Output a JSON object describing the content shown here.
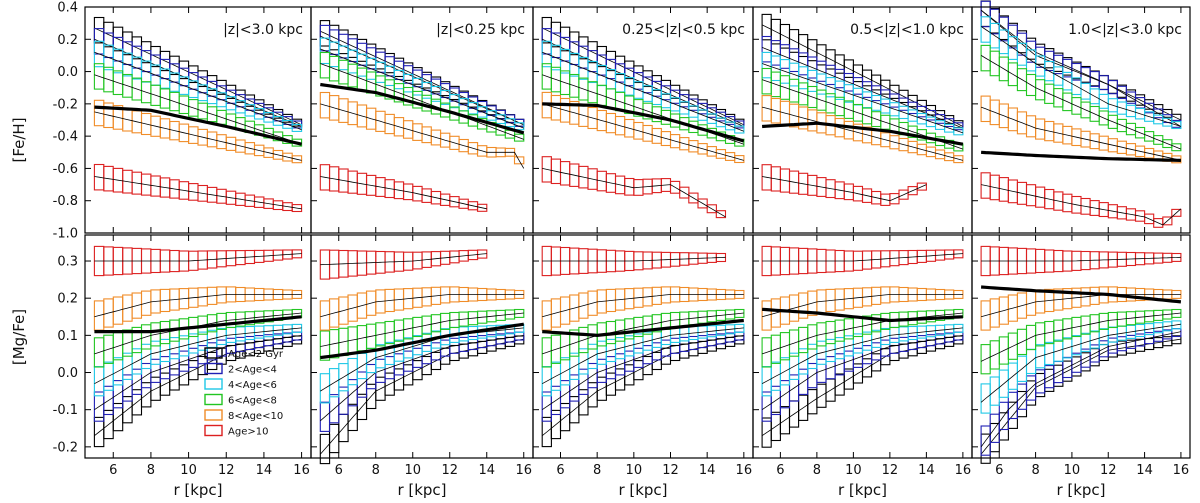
{
  "figure": {
    "ylabel_top": "[Fe/H]",
    "ylabel_bottom": "[Mg/Fe]",
    "xlabel": "r  [kpc]",
    "xticks": [
      "6",
      "8",
      "10",
      "12",
      "14",
      "16"
    ],
    "yticks_top": [
      "0.4",
      "0.2",
      "0.0",
      "-0.2",
      "-0.4",
      "-0.6",
      "-0.8",
      "-1.0"
    ],
    "yticks_bottom": [
      "0.3",
      "0.2",
      "0.1",
      "0.0",
      "-0.1",
      "-0.2"
    ],
    "panel_titles": [
      "|z|<3.0 kpc",
      "|z|<0.25 kpc",
      "0.25<|z|<0.5 kpc",
      "0.5<|z|<1.0 kpc",
      "1.0<|z|<3.0 kpc"
    ]
  },
  "legend": [
    {
      "label": "Age<2 Gyr",
      "color": "#000000"
    },
    {
      "label": "2<Age<4",
      "color": "#1f1fb4"
    },
    {
      "label": "4<Age<6",
      "color": "#1ec8e6"
    },
    {
      "label": "6<Age<8",
      "color": "#22c522"
    },
    {
      "label": "8<Age<10",
      "color": "#f08c28"
    },
    {
      "label": "Age>10",
      "color": "#dc2020"
    }
  ],
  "chart_data": [
    {
      "type": "line",
      "panel": "|z|<3.0 kpc",
      "xlim": [
        4.5,
        16.5
      ],
      "ylim_top": [
        -1.0,
        0.4
      ],
      "ylim_bottom": [
        -0.23,
        0.37
      ],
      "feh": [
        {
          "name": "Age<2 Gyr",
          "x": [
            5,
            16
          ],
          "y": [
            0.27,
            -0.33
          ]
        },
        {
          "name": "2<Age<4",
          "x": [
            5,
            16
          ],
          "y": [
            0.2,
            -0.34
          ]
        },
        {
          "name": "4<Age<6",
          "x": [
            5,
            16
          ],
          "y": [
            0.12,
            -0.36
          ]
        },
        {
          "name": "6<Age<8",
          "x": [
            5,
            16
          ],
          "y": [
            -0.02,
            -0.45
          ]
        },
        {
          "name": "8<Age<10",
          "x": [
            5,
            16
          ],
          "y": [
            -0.25,
            -0.55
          ]
        },
        {
          "name": "Age>10",
          "x": [
            5,
            16
          ],
          "y": [
            -0.65,
            -0.85
          ]
        },
        {
          "name": "all",
          "x": [
            5,
            8,
            12,
            16
          ],
          "y": [
            -0.22,
            -0.24,
            -0.34,
            -0.45
          ]
        }
      ],
      "mgfe": [
        {
          "name": "Age<2 Gyr",
          "x": [
            5,
            8,
            12,
            16
          ],
          "y": [
            -0.17,
            -0.05,
            0.05,
            0.09
          ]
        },
        {
          "name": "2<Age<4",
          "x": [
            5,
            8,
            12,
            16
          ],
          "y": [
            -0.1,
            0.0,
            0.07,
            0.1
          ]
        },
        {
          "name": "4<Age<6",
          "x": [
            5,
            8,
            12,
            16
          ],
          "y": [
            -0.03,
            0.05,
            0.1,
            0.12
          ]
        },
        {
          "name": "6<Age<8",
          "x": [
            5,
            8,
            12,
            16
          ],
          "y": [
            0.05,
            0.1,
            0.14,
            0.16
          ]
        },
        {
          "name": "8<Age<10",
          "x": [
            5,
            8,
            12,
            16
          ],
          "y": [
            0.15,
            0.19,
            0.21,
            0.21
          ]
        },
        {
          "name": "Age>10",
          "x": [
            5,
            10,
            16
          ],
          "y": [
            0.3,
            0.3,
            0.32
          ]
        },
        {
          "name": "all",
          "x": [
            5,
            8,
            12,
            16
          ],
          "y": [
            0.11,
            0.11,
            0.13,
            0.15
          ]
        }
      ]
    },
    {
      "type": "line",
      "panel": "|z|<0.25 kpc",
      "xlim": [
        4.5,
        16.5
      ],
      "ylim_top": [
        -1.0,
        0.4
      ],
      "ylim_bottom": [
        -0.23,
        0.37
      ],
      "feh": [
        {
          "name": "Age<2 Gyr",
          "x": [
            5,
            16
          ],
          "y": [
            0.25,
            -0.33
          ]
        },
        {
          "name": "2<Age<4",
          "x": [
            5,
            16
          ],
          "y": [
            0.22,
            -0.33
          ]
        },
        {
          "name": "4<Age<6",
          "x": [
            5,
            16
          ],
          "y": [
            0.14,
            -0.35
          ]
        },
        {
          "name": "6<Age<8",
          "x": [
            5,
            16
          ],
          "y": [
            0.05,
            -0.42
          ]
        },
        {
          "name": "8<Age<10",
          "x": [
            5,
            14,
            15.5,
            16
          ],
          "y": [
            -0.2,
            -0.5,
            -0.5,
            -0.6
          ]
        },
        {
          "name": "Age>10",
          "x": [
            5,
            10,
            14
          ],
          "y": [
            -0.65,
            -0.75,
            -0.85
          ]
        },
        {
          "name": "all",
          "x": [
            5,
            8,
            12,
            16
          ],
          "y": [
            -0.08,
            -0.13,
            -0.25,
            -0.38
          ]
        }
      ],
      "mgfe": [
        {
          "name": "Age<2 Gyr",
          "x": [
            5,
            8,
            12,
            16
          ],
          "y": [
            -0.22,
            -0.05,
            0.05,
            0.09
          ]
        },
        {
          "name": "2<Age<4",
          "x": [
            5,
            8,
            12,
            16
          ],
          "y": [
            -0.13,
            0.0,
            0.07,
            0.1
          ]
        },
        {
          "name": "4<Age<6",
          "x": [
            5,
            8,
            12,
            16
          ],
          "y": [
            -0.05,
            0.04,
            0.1,
            0.12
          ]
        },
        {
          "name": "6<Age<8",
          "x": [
            5,
            8,
            12,
            16
          ],
          "y": [
            0.07,
            0.1,
            0.14,
            0.16
          ]
        },
        {
          "name": "8<Age<10",
          "x": [
            5,
            8,
            12,
            16
          ],
          "y": [
            0.15,
            0.19,
            0.21,
            0.21
          ]
        },
        {
          "name": "Age>10",
          "x": [
            5,
            10,
            14
          ],
          "y": [
            0.29,
            0.3,
            0.32
          ]
        },
        {
          "name": "all",
          "x": [
            5,
            8,
            12,
            16
          ],
          "y": [
            0.04,
            0.06,
            0.1,
            0.13
          ]
        }
      ]
    },
    {
      "type": "line",
      "panel": "0.25<|z|<0.5 kpc",
      "xlim": [
        4.5,
        16.5
      ],
      "ylim_top": [
        -1.0,
        0.4
      ],
      "ylim_bottom": [
        -0.23,
        0.37
      ],
      "feh": [
        {
          "name": "Age<2 Gyr",
          "x": [
            5,
            16
          ],
          "y": [
            0.27,
            -0.33
          ]
        },
        {
          "name": "2<Age<4",
          "x": [
            5,
            16
          ],
          "y": [
            0.2,
            -0.34
          ]
        },
        {
          "name": "4<Age<6",
          "x": [
            5,
            16
          ],
          "y": [
            0.12,
            -0.37
          ]
        },
        {
          "name": "6<Age<8",
          "x": [
            5,
            16
          ],
          "y": [
            -0.02,
            -0.45
          ]
        },
        {
          "name": "8<Age<10",
          "x": [
            5,
            16
          ],
          "y": [
            -0.2,
            -0.55
          ]
        },
        {
          "name": "Age>10",
          "x": [
            5,
            10,
            12,
            15
          ],
          "y": [
            -0.6,
            -0.72,
            -0.7,
            -0.9
          ]
        },
        {
          "name": "all",
          "x": [
            5,
            8,
            12,
            16
          ],
          "y": [
            -0.2,
            -0.21,
            -0.3,
            -0.43
          ]
        }
      ],
      "mgfe": [
        {
          "name": "Age<2 Gyr",
          "x": [
            5,
            8,
            12,
            16
          ],
          "y": [
            -0.17,
            -0.05,
            0.05,
            0.09
          ]
        },
        {
          "name": "2<Age<4",
          "x": [
            5,
            8,
            12,
            16
          ],
          "y": [
            -0.1,
            0.0,
            0.07,
            0.1
          ]
        },
        {
          "name": "4<Age<6",
          "x": [
            5,
            8,
            12,
            16
          ],
          "y": [
            -0.03,
            0.05,
            0.1,
            0.12
          ]
        },
        {
          "name": "6<Age<8",
          "x": [
            5,
            8,
            12,
            16
          ],
          "y": [
            0.05,
            0.1,
            0.14,
            0.16
          ]
        },
        {
          "name": "8<Age<10",
          "x": [
            5,
            8,
            12,
            16
          ],
          "y": [
            0.15,
            0.19,
            0.21,
            0.21
          ]
        },
        {
          "name": "Age>10",
          "x": [
            5,
            10,
            15
          ],
          "y": [
            0.3,
            0.3,
            0.31
          ]
        },
        {
          "name": "all",
          "x": [
            5,
            8,
            12,
            16
          ],
          "y": [
            0.11,
            0.1,
            0.12,
            0.14
          ]
        }
      ]
    },
    {
      "type": "line",
      "panel": "0.5<|z|<1.0 kpc",
      "xlim": [
        4.5,
        16.5
      ],
      "ylim_top": [
        -1.0,
        0.4
      ],
      "ylim_bottom": [
        -0.23,
        0.37
      ],
      "feh": [
        {
          "name": "Age<2 Gyr",
          "x": [
            5,
            16
          ],
          "y": [
            0.29,
            -0.34
          ]
        },
        {
          "name": "2<Age<4",
          "x": [
            5,
            16
          ],
          "y": [
            0.15,
            -0.35
          ]
        },
        {
          "name": "4<Age<6",
          "x": [
            5,
            16
          ],
          "y": [
            0.05,
            -0.38
          ]
        },
        {
          "name": "6<Age<8",
          "x": [
            5,
            16
          ],
          "y": [
            -0.05,
            -0.48
          ]
        },
        {
          "name": "8<Age<10",
          "x": [
            5,
            16
          ],
          "y": [
            -0.22,
            -0.55
          ]
        },
        {
          "name": "Age>10",
          "x": [
            5,
            10,
            12,
            14
          ],
          "y": [
            -0.65,
            -0.75,
            -0.8,
            -0.7
          ]
        },
        {
          "name": "all",
          "x": [
            5,
            8,
            12,
            16
          ],
          "y": [
            -0.34,
            -0.32,
            -0.37,
            -0.45
          ]
        }
      ],
      "mgfe": [
        {
          "name": "Age<2 Gyr",
          "x": [
            5,
            8,
            12,
            16
          ],
          "y": [
            -0.17,
            -0.07,
            0.05,
            0.09
          ]
        },
        {
          "name": "2<Age<4",
          "x": [
            5,
            8,
            12,
            16
          ],
          "y": [
            -0.1,
            0.0,
            0.07,
            0.1
          ]
        },
        {
          "name": "4<Age<6",
          "x": [
            5,
            8,
            12,
            16
          ],
          "y": [
            -0.03,
            0.05,
            0.1,
            0.12
          ]
        },
        {
          "name": "6<Age<8",
          "x": [
            5,
            8,
            12,
            16
          ],
          "y": [
            0.05,
            0.1,
            0.14,
            0.16
          ]
        },
        {
          "name": "8<Age<10",
          "x": [
            5,
            8,
            12,
            16
          ],
          "y": [
            0.15,
            0.19,
            0.21,
            0.21
          ]
        },
        {
          "name": "Age>10",
          "x": [
            5,
            10,
            16
          ],
          "y": [
            0.3,
            0.3,
            0.32
          ]
        },
        {
          "name": "all",
          "x": [
            5,
            8,
            12,
            16
          ],
          "y": [
            0.17,
            0.16,
            0.14,
            0.15
          ]
        }
      ]
    },
    {
      "type": "line",
      "panel": "1.0<|z|<3.0 kpc",
      "xlim": [
        4.5,
        16.5
      ],
      "ylim_top": [
        -1.0,
        0.4
      ],
      "ylim_bottom": [
        -0.23,
        0.37
      ],
      "feh": [
        {
          "name": "Age<2 Gyr",
          "x": [
            5,
            8,
            12,
            16
          ],
          "y": [
            0.38,
            0.12,
            -0.08,
            -0.3
          ]
        },
        {
          "name": "2<Age<4",
          "x": [
            5,
            8,
            12,
            16
          ],
          "y": [
            0.38,
            0.1,
            -0.08,
            -0.34
          ]
        },
        {
          "name": "4<Age<6",
          "x": [
            5,
            8,
            12,
            16
          ],
          "y": [
            0.28,
            0.05,
            -0.2,
            -0.34
          ]
        },
        {
          "name": "6<Age<8",
          "x": [
            5,
            8,
            12,
            16
          ],
          "y": [
            0.1,
            -0.1,
            -0.3,
            -0.48
          ]
        },
        {
          "name": "8<Age<10",
          "x": [
            5,
            8,
            12,
            16
          ],
          "y": [
            -0.22,
            -0.35,
            -0.45,
            -0.55
          ]
        },
        {
          "name": "Age>10",
          "x": [
            5,
            10,
            14,
            15,
            16
          ],
          "y": [
            -0.7,
            -0.82,
            -0.9,
            -0.95,
            -0.85
          ]
        },
        {
          "name": "all",
          "x": [
            5,
            8,
            12,
            16
          ],
          "y": [
            -0.5,
            -0.52,
            -0.54,
            -0.55
          ]
        }
      ],
      "mgfe": [
        {
          "name": "Age<2 Gyr",
          "x": [
            5,
            6.5,
            8,
            12,
            16
          ],
          "y": [
            -0.22,
            -0.13,
            -0.04,
            0.06,
            0.09
          ]
        },
        {
          "name": "2<Age<4",
          "x": [
            5,
            6.5,
            8,
            12,
            16
          ],
          "y": [
            -0.2,
            -0.1,
            -0.03,
            0.07,
            0.11
          ]
        },
        {
          "name": "4<Age<6",
          "x": [
            5,
            8,
            12,
            16
          ],
          "y": [
            -0.08,
            0.04,
            0.1,
            0.13
          ]
        },
        {
          "name": "6<Age<8",
          "x": [
            5,
            8,
            12,
            16
          ],
          "y": [
            0.03,
            0.1,
            0.14,
            0.16
          ]
        },
        {
          "name": "8<Age<10",
          "x": [
            5,
            8,
            12,
            16
          ],
          "y": [
            0.15,
            0.19,
            0.21,
            0.21
          ]
        },
        {
          "name": "Age>10",
          "x": [
            5,
            10,
            16
          ],
          "y": [
            0.3,
            0.3,
            0.31
          ]
        },
        {
          "name": "all",
          "x": [
            5,
            8,
            12,
            16
          ],
          "y": [
            0.23,
            0.22,
            0.21,
            0.19
          ]
        }
      ]
    }
  ]
}
